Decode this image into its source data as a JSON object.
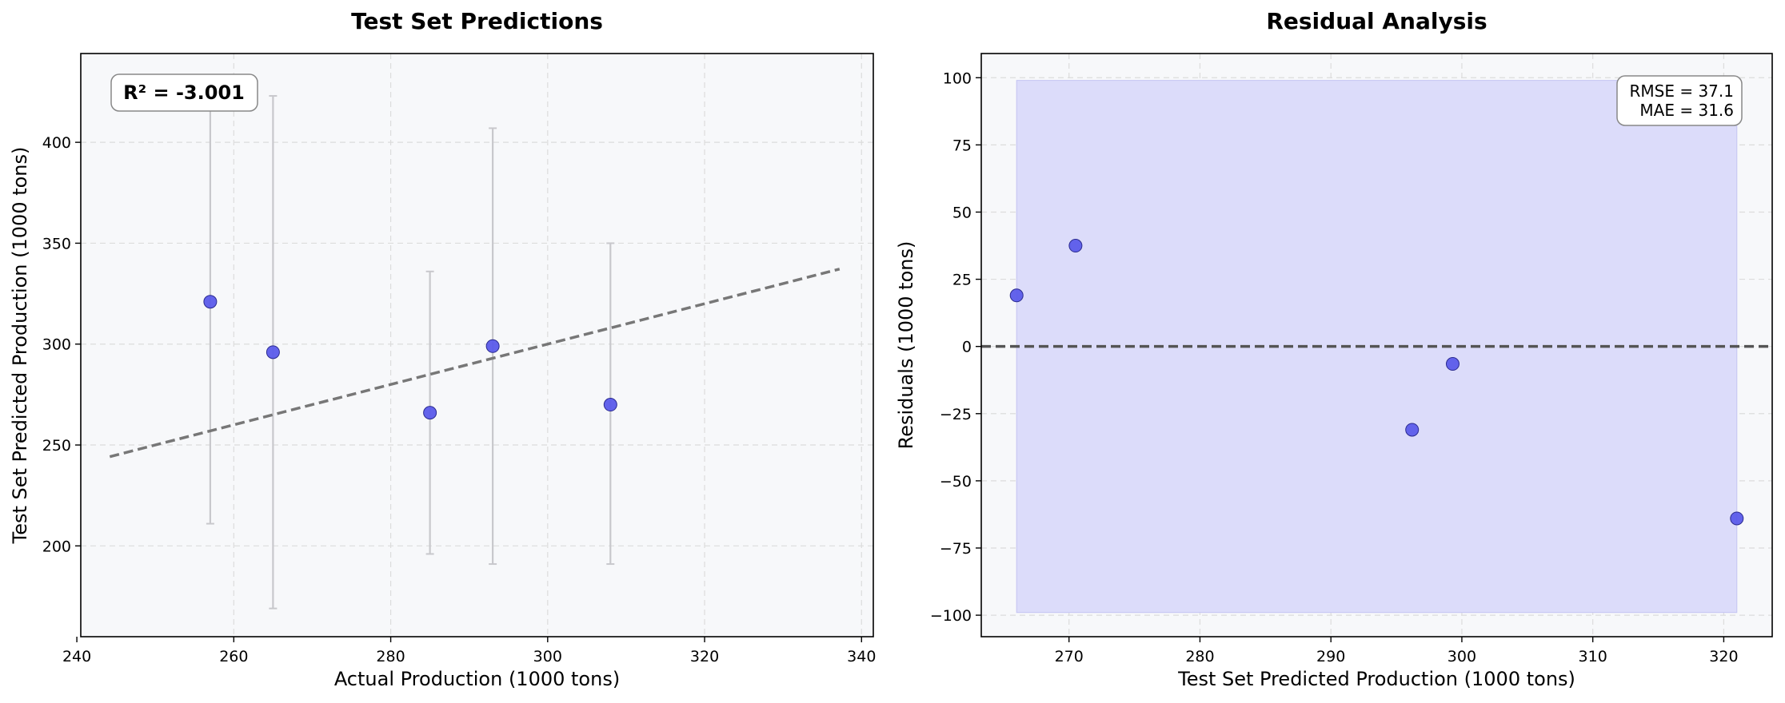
{
  "chart_data": [
    {
      "type": "scatter",
      "title": "Test Set Predictions",
      "xlabel": "Actual Production (1000 tons)",
      "ylabel": "Test Set Predicted Production (1000 tons)",
      "xlim": [
        240.5,
        341.5
      ],
      "ylim": [
        155,
        444
      ],
      "xticks": [
        240,
        260,
        280,
        300,
        320,
        340
      ],
      "yticks": [
        200,
        250,
        300,
        350,
        400
      ],
      "tick_labels_x": [
        "240",
        "260",
        "280",
        "300",
        "320",
        "340"
      ],
      "tick_labels_y": [
        "200",
        "250",
        "300",
        "350",
        "400"
      ],
      "grid": true,
      "series": [
        {
          "points": [
            {
              "x": 257,
              "y": 321,
              "lo": 211,
              "hi": 431
            },
            {
              "x": 265,
              "y": 296,
              "lo": 169,
              "hi": 423
            },
            {
              "x": 285,
              "y": 266,
              "lo": 196,
              "hi": 336
            },
            {
              "x": 293,
              "y": 299,
              "lo": 191,
              "hi": 407
            },
            {
              "x": 308,
              "y": 270,
              "lo": 191,
              "hi": 350
            }
          ]
        }
      ],
      "reference_line": {
        "x": [
          244.2,
          337.2
        ],
        "y": [
          244.2,
          337.2
        ],
        "style": "dashed"
      },
      "annotation": {
        "text": "R² = -3.001",
        "placement": "top-left"
      },
      "colors": {
        "points": "#5b5bea",
        "point_edge": "#2b2b8f",
        "errorbars": "#c8c8cc",
        "reference_line": "#777777",
        "background": "#f7f8fa"
      }
    },
    {
      "type": "scatter",
      "title": "Residual Analysis",
      "xlabel": "Test Set Predicted Production (1000 tons)",
      "ylabel": "Residuals (1000 tons)",
      "xlim": [
        263.3,
        323.7
      ],
      "ylim": [
        -108,
        109
      ],
      "xticks": [
        270,
        280,
        290,
        300,
        310,
        320
      ],
      "yticks": [
        -100,
        -75,
        -50,
        -25,
        0,
        25,
        50,
        75,
        100
      ],
      "tick_labels_x": [
        "270",
        "280",
        "290",
        "300",
        "310",
        "320"
      ],
      "tick_labels_y": [
        "−100",
        "−75",
        "−50",
        "−25",
        "0",
        "25",
        "50",
        "75",
        "100"
      ],
      "grid": true,
      "series": [
        {
          "points": [
            {
              "x": 266.0,
              "y": 19
            },
            {
              "x": 270.5,
              "y": 37.5
            },
            {
              "x": 296.2,
              "y": -31
            },
            {
              "x": 299.3,
              "y": -6.5
            },
            {
              "x": 321.0,
              "y": -64
            }
          ]
        }
      ],
      "zero_line": {
        "y": 0,
        "style": "dashed"
      },
      "band": {
        "x": [
          266.0,
          321.0
        ],
        "y": [
          -99,
          99
        ]
      },
      "annotation": {
        "lines": [
          "RMSE = 37.1",
          "MAE = 31.6"
        ],
        "placement": "top-right"
      },
      "colors": {
        "points": "#5b5bea",
        "point_edge": "#2b2b8f",
        "band": "#dcdcfa",
        "zero_line": "#555555",
        "background": "#f7f8fa"
      }
    }
  ]
}
